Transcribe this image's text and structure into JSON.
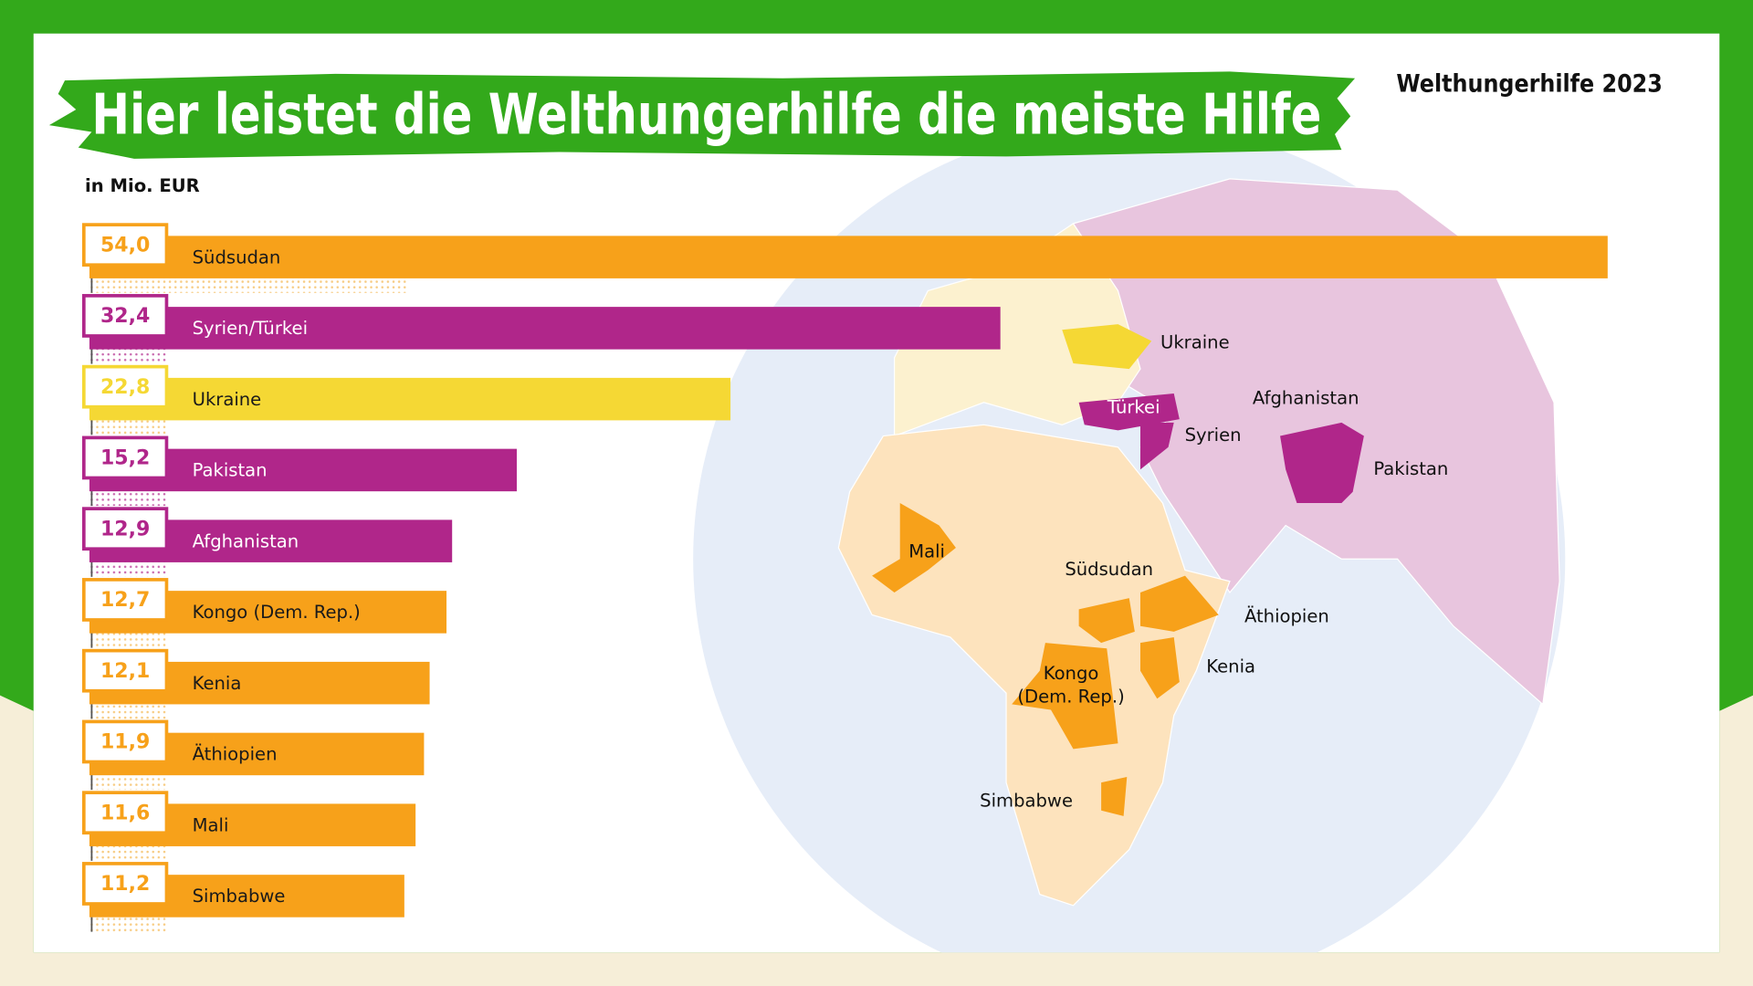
{
  "chart_data": {
    "type": "bar",
    "title": "Hier leistet die Welthungerhilfe die meiste Hilfe",
    "source": "Welthungerhilfe 2023",
    "subtitle": "in Mio. EUR",
    "categories": [
      "Südsudan",
      "Syrien/Türkei",
      "Ukraine",
      "Pakistan",
      "Afghanistan",
      "Kongo (Dem. Rep.)",
      "Kenia",
      "Äthiopien",
      "Mali",
      "Simbabwe"
    ],
    "values": [
      54.0,
      32.4,
      22.8,
      15.2,
      12.9,
      12.7,
      12.1,
      11.9,
      11.6,
      11.2
    ],
    "value_labels": [
      "54,0",
      "32,4",
      "22,8",
      "15,2",
      "12,9",
      "12,7",
      "12,1",
      "11,9",
      "11,6",
      "11,2"
    ],
    "colors": [
      "#f7a11a",
      "#b0268a",
      "#f5d834",
      "#b0268a",
      "#b0268a",
      "#f7a11a",
      "#f7a11a",
      "#f7a11a",
      "#f7a11a",
      "#f7a11a"
    ],
    "map_labels": [
      "Ukraine",
      "Türkei",
      "Syrien",
      "Afghanistan",
      "Pakistan",
      "Mali",
      "Südsudan",
      "Äthiopien",
      "Kenia",
      "Kongo",
      "(Dem. Rep.)",
      "Simbabwe"
    ]
  }
}
